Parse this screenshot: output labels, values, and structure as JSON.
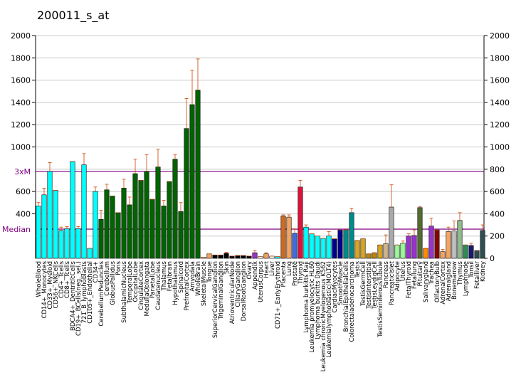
{
  "chart_data": {
    "type": "bar",
    "title": "200011_s_at",
    "categories": [
      "WholeBlood",
      "CD14+_Monocytes",
      "CD33+_Myeloid",
      "CD56+_NKCells",
      "CD4+_Tcells",
      "CD8+_Tcells",
      "BDCA4+_DentriticCells",
      "CD19+_BCells(neg._sel.)",
      "721_B_lymphoblasts",
      "CD105+_Endothelial",
      "CD34+",
      "CerebellumPeduncles",
      "Cerebellum",
      "GlobusPallidus",
      "Pons",
      "SubthalamicNucleus",
      "TemporalLobe",
      "OccipitalLobe",
      "CingulateCortex",
      "MedullaOblongata",
      "ParietalLobe",
      "Caudatenucleus",
      "Thalamus",
      "Fetalbrain",
      "Hypothalamus",
      "Spinalcord",
      "PrefrontalCortex",
      "Amygdala",
      "WholeBrain",
      "SkeletalMuscle",
      "Tongue",
      "SuperiorCervicalGanglion",
      "TrigeminalGanglion",
      "Skin",
      "AtrioventricularNode",
      "CiliaryGanglion",
      "DorsalRootGanglion",
      "Ovary",
      "Appendix",
      "UterusCorpus",
      "Heart",
      "Liver",
      "CD71+_EarlyErythroid",
      "Placenta",
      "Lung",
      "Prostate",
      "Thyroid",
      "Lymphoma burkitts Raji",
      "Leukemia promyelocytic HL60",
      "Lymphoma burkitts Daudi",
      "Leukemia chronicMyelogenous K562",
      "Leukemialymphoblastic(MOLT4)",
      "CardiacMyocytes",
      "SmoothMuscle",
      "BronchialEpithelialCells",
      "Colorectaladenocarcinoma",
      "Testis",
      "TestisGermCell",
      "TestisInterstitial",
      "TestisLeydigCell",
      "TestisSeminiferousTubule",
      "Pancreas",
      "PancreaticIslet",
      "Adipocyte",
      "Uterus",
      "FetalThyroid",
      "Fetallung",
      "Pituitary",
      "Salivarygland",
      "Trachea",
      "OlfactoryBulb",
      "AdrenalCortex",
      "Adrenalgland",
      "Bonemarrow",
      "Thymus",
      "Lymphnode",
      "Tonsil",
      "Fetalliver",
      "Kidney"
    ],
    "values": [
      470,
      570,
      780,
      610,
      250,
      265,
      870,
      265,
      840,
      90,
      600,
      350,
      615,
      560,
      410,
      630,
      480,
      760,
      700,
      780,
      530,
      820,
      470,
      690,
      890,
      420,
      1165,
      1380,
      1510,
      10,
      40,
      30,
      30,
      45,
      20,
      25,
      25,
      20,
      50,
      15,
      40,
      20,
      15,
      380,
      370,
      225,
      640,
      280,
      220,
      200,
      180,
      200,
      175,
      255,
      255,
      410,
      160,
      175,
      40,
      50,
      120,
      130,
      460,
      120,
      135,
      200,
      205,
      455,
      90,
      290,
      255,
      60,
      240,
      245,
      340,
      120,
      115,
      70,
      250
    ],
    "errors": [
      30,
      60,
      80,
      0,
      30,
      20,
      0,
      20,
      100,
      0,
      40,
      80,
      50,
      0,
      0,
      80,
      70,
      130,
      0,
      150,
      0,
      160,
      50,
      0,
      40,
      80,
      270,
      310,
      280,
      0,
      0,
      0,
      0,
      10,
      0,
      0,
      0,
      0,
      20,
      0,
      10,
      0,
      0,
      10,
      20,
      40,
      60,
      20,
      0,
      0,
      0,
      40,
      0,
      0,
      0,
      40,
      0,
      0,
      0,
      0,
      0,
      80,
      200,
      0,
      20,
      20,
      50,
      10,
      0,
      70,
      0,
      20,
      40,
      90,
      70,
      0,
      20,
      0,
      50
    ],
    "colors": [
      "#00ffff",
      "#00ffff",
      "#00ffff",
      "#00ffff",
      "#00ffff",
      "#00ffff",
      "#00ffff",
      "#00ffff",
      "#00ffff",
      "#00ffff",
      "#00ffff",
      "#006400",
      "#006400",
      "#006400",
      "#006400",
      "#006400",
      "#006400",
      "#006400",
      "#006400",
      "#006400",
      "#006400",
      "#006400",
      "#006400",
      "#006400",
      "#006400",
      "#006400",
      "#006400",
      "#006400",
      "#006400",
      "#ffffff",
      "#f4a460",
      "#000000",
      "#000000",
      "#000000",
      "#000000",
      "#000000",
      "#000000",
      "#000000",
      "#9932cc",
      "#ffffff",
      "#f4a460",
      "#ffffff",
      "#00ffff",
      "#d2691e",
      "#f4a460",
      "#4169e1",
      "#dc143c",
      "#00ffff",
      "#00ffff",
      "#00ffff",
      "#00ffff",
      "#00ffff",
      "#00008b",
      "#00008b",
      "#008b8b",
      "#008b8b",
      "#daa520",
      "#daa520",
      "#b8860b",
      "#b8860b",
      "#daa520",
      "#d2b48c",
      "#a9a9a9",
      "#98fb98",
      "#98fb98",
      "#9932cc",
      "#9932cc",
      "#556b2f",
      "#ff8c00",
      "#9932cc",
      "#8b0000",
      "#f4a460",
      "#f4a460",
      "#c0c0c0",
      "#8fbc8f",
      "#2e8b57",
      "#191970",
      "#2f4f4f",
      "#2f4f4f"
    ],
    "errorcolor": "#cc4400",
    "ylim": [
      0,
      2000
    ],
    "yticks_left": [
      400,
      600,
      1000,
      1200,
      1400,
      1600,
      1800,
      2000
    ],
    "yticks_right": [
      0,
      200,
      400,
      600,
      800,
      1000,
      1200,
      1400,
      1600,
      1800,
      2000
    ],
    "lines": [
      {
        "label": "3xM",
        "value": 780,
        "color": "#800080"
      },
      {
        "label": "Median",
        "value": 262,
        "color": "#800080"
      }
    ],
    "grid": true
  }
}
